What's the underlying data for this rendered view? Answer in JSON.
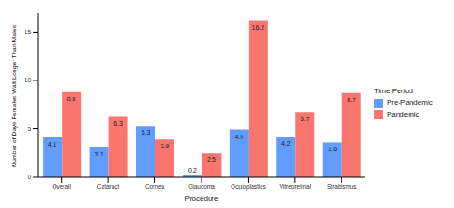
{
  "chart_data": {
    "type": "bar",
    "x_label": "Procedure",
    "y_label": "Number of Days Females Wait Longer Than Males",
    "legend_title": "Time Period",
    "categories": [
      "Overall",
      "Cataract",
      "Cornea",
      "Glaucoma",
      "Oculoplastics",
      "Vitreoretinal",
      "Strabismus"
    ],
    "series": [
      {
        "name": "Pre-Pandemic",
        "color": "#619CFF",
        "values": [
          4.1,
          3.1,
          5.3,
          0.2,
          4.9,
          4.2,
          3.6
        ]
      },
      {
        "name": "Pandemic",
        "color": "#F8766D",
        "values": [
          8.8,
          6.3,
          3.9,
          2.5,
          16.2,
          6.7,
          8.7
        ]
      }
    ],
    "ylim": [
      0,
      17
    ],
    "yticks": [
      0,
      5,
      10,
      15
    ],
    "grid": false,
    "legend": "right",
    "data_labels": true
  }
}
